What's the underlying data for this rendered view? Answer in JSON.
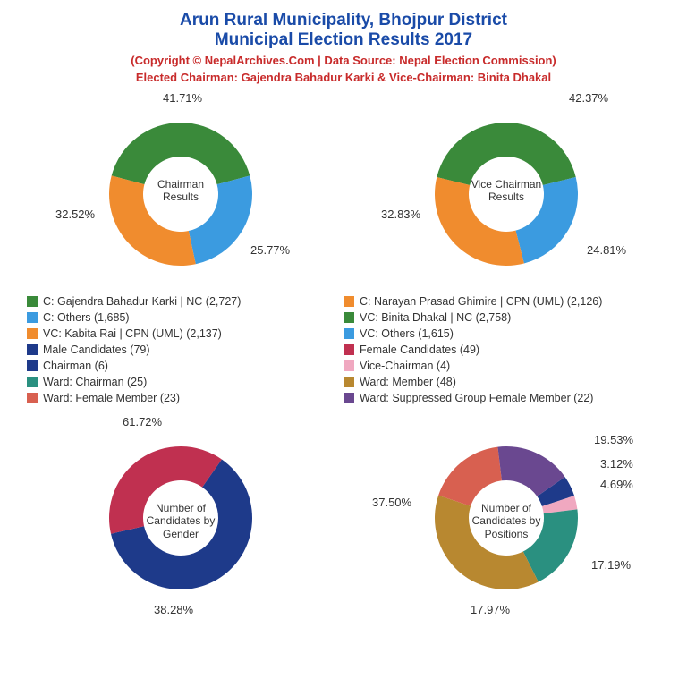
{
  "title": {
    "line1": "Arun Rural Municipality, Bhojpur District",
    "line2": "Municipal Election Results 2017",
    "color": "#1a4ba8",
    "fontsize": 19
  },
  "subtitle": {
    "line1": "(Copyright © NepalArchives.Com | Data Source: Nepal Election Commission)",
    "line2": "Elected Chairman: Gajendra Bahadur Karki & Vice-Chairman: Binita Dhakal",
    "color": "#c82b2b",
    "fontsize": 13
  },
  "colors": {
    "green": "#3a8a3a",
    "orange": "#f08c2e",
    "lightblue": "#3b9be0",
    "navy": "#1e3a8a",
    "crimson": "#c03050",
    "pink": "#f0a8c0",
    "teal": "#2a9080",
    "gold": "#b88830",
    "salmon": "#d86050",
    "purple": "#6a4890"
  },
  "charts": {
    "chairman": {
      "type": "donut",
      "center_label": "Chairman Results",
      "slices": [
        {
          "pct": 41.71,
          "label": "41.71%",
          "color_key": "green"
        },
        {
          "pct": 25.77,
          "label": "25.77%",
          "color_key": "lightblue"
        },
        {
          "pct": 32.52,
          "label": "32.52%",
          "color_key": "orange"
        }
      ]
    },
    "vice_chairman": {
      "type": "donut",
      "center_label": "Vice Chairman Results",
      "slices": [
        {
          "pct": 42.37,
          "label": "42.37%",
          "color_key": "green"
        },
        {
          "pct": 24.81,
          "label": "24.81%",
          "color_key": "lightblue"
        },
        {
          "pct": 32.83,
          "label": "32.83%",
          "color_key": "orange"
        }
      ]
    },
    "gender": {
      "type": "donut",
      "center_label": "Number of Candidates by Gender",
      "slices": [
        {
          "pct": 61.72,
          "label": "61.72%",
          "color_key": "navy"
        },
        {
          "pct": 38.28,
          "label": "38.28%",
          "color_key": "crimson"
        }
      ]
    },
    "positions": {
      "type": "donut",
      "center_label": "Number of Candidates by Positions",
      "slices": [
        {
          "pct": 4.69,
          "label": "4.69%",
          "color_key": "navy"
        },
        {
          "pct": 3.12,
          "label": "3.12%",
          "color_key": "pink"
        },
        {
          "pct": 19.53,
          "label": "19.53%",
          "color_key": "teal"
        },
        {
          "pct": 37.5,
          "label": "37.50%",
          "color_key": "gold"
        },
        {
          "pct": 17.97,
          "label": "17.97%",
          "color_key": "salmon"
        },
        {
          "pct": 17.19,
          "label": "17.19%",
          "color_key": "purple"
        }
      ]
    }
  },
  "legend": [
    {
      "color_key": "green",
      "text": "C: Gajendra Bahadur Karki | NC (2,727)"
    },
    {
      "color_key": "orange",
      "text": "C: Narayan Prasad Ghimire | CPN (UML) (2,126)"
    },
    {
      "color_key": "lightblue",
      "text": "C: Others (1,685)"
    },
    {
      "color_key": "green",
      "text": "VC: Binita Dhakal | NC (2,758)"
    },
    {
      "color_key": "orange",
      "text": "VC: Kabita Rai | CPN (UML) (2,137)"
    },
    {
      "color_key": "lightblue",
      "text": "VC: Others (1,615)"
    },
    {
      "color_key": "navy",
      "text": "Male Candidates (79)"
    },
    {
      "color_key": "crimson",
      "text": "Female Candidates (49)"
    },
    {
      "color_key": "navy",
      "text": "Chairman (6)"
    },
    {
      "color_key": "pink",
      "text": "Vice-Chairman (4)"
    },
    {
      "color_key": "teal",
      "text": "Ward: Chairman (25)"
    },
    {
      "color_key": "gold",
      "text": "Ward: Member (48)"
    },
    {
      "color_key": "salmon",
      "text": "Ward: Female Member (23)"
    },
    {
      "color_key": "purple",
      "text": "Ward: Suppressed Group Female Member (22)"
    }
  ],
  "donut_style": {
    "outer_r": 80,
    "inner_r": 42,
    "stroke": "#ffffff",
    "stroke_width": 0
  }
}
